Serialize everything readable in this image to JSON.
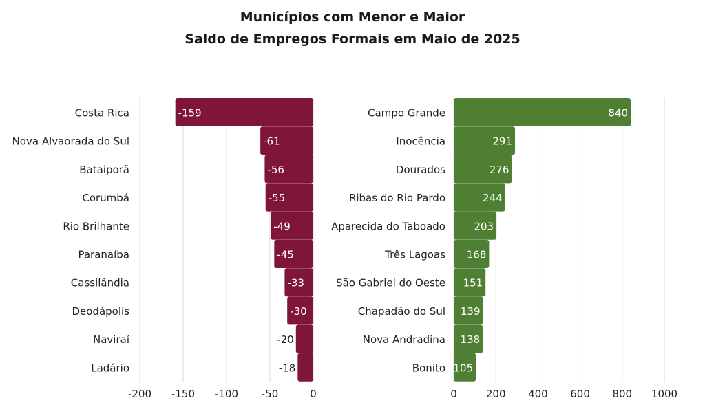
{
  "title_line1": "Municípios com Menor e Maior",
  "title_line2": "Saldo de Empregos Formais em Maio de 2025",
  "colors": {
    "negative": "#7f1637",
    "positive": "#4e7f33",
    "grid": "#d9d9d9",
    "text": "#222222",
    "label_light": "#ffffff"
  },
  "chart_data": [
    {
      "type": "bar",
      "orientation": "horizontal",
      "categories": [
        "Costa Rica",
        "Nova Alvaorada do Sul",
        "Bataiporã",
        "Corumbá",
        "Rio Brilhante",
        "Paranaíba",
        "Cassilândia",
        "Deodápolis",
        "Naviraí",
        "Ladário"
      ],
      "values": [
        -159,
        -61,
        -56,
        -55,
        -49,
        -45,
        -33,
        -30,
        -20,
        -18
      ],
      "data_labels": [
        "-159",
        "-61",
        "-56",
        "-55",
        "-49",
        "-45",
        "-33",
        "-30",
        "-20",
        "-18"
      ],
      "xlim": [
        -200,
        0
      ],
      "xticks": [
        -200,
        -150,
        -100,
        -50,
        0
      ],
      "xtick_labels": [
        "-200",
        "-150",
        "-100",
        "-50",
        "0"
      ],
      "grid": true,
      "color": "#7f1637"
    },
    {
      "type": "bar",
      "orientation": "horizontal",
      "categories": [
        "Campo Grande",
        "Inocência",
        "Dourados",
        "Ribas do Rio Pardo",
        "Aparecida do Taboado",
        "Três Lagoas",
        "São Gabriel do Oeste",
        "Chapadão do Sul",
        "Nova Andradina",
        "Bonito"
      ],
      "values": [
        840,
        291,
        276,
        244,
        203,
        168,
        151,
        139,
        138,
        105
      ],
      "data_labels": [
        "840",
        "291",
        "276",
        "244",
        "203",
        "168",
        "151",
        "139",
        "138",
        "105"
      ],
      "xlim": [
        0,
        1000
      ],
      "xticks": [
        0,
        200,
        400,
        600,
        800,
        1000
      ],
      "xtick_labels": [
        "0",
        "200",
        "400",
        "600",
        "800",
        "1000"
      ],
      "grid": true,
      "color": "#4e7f33"
    }
  ]
}
